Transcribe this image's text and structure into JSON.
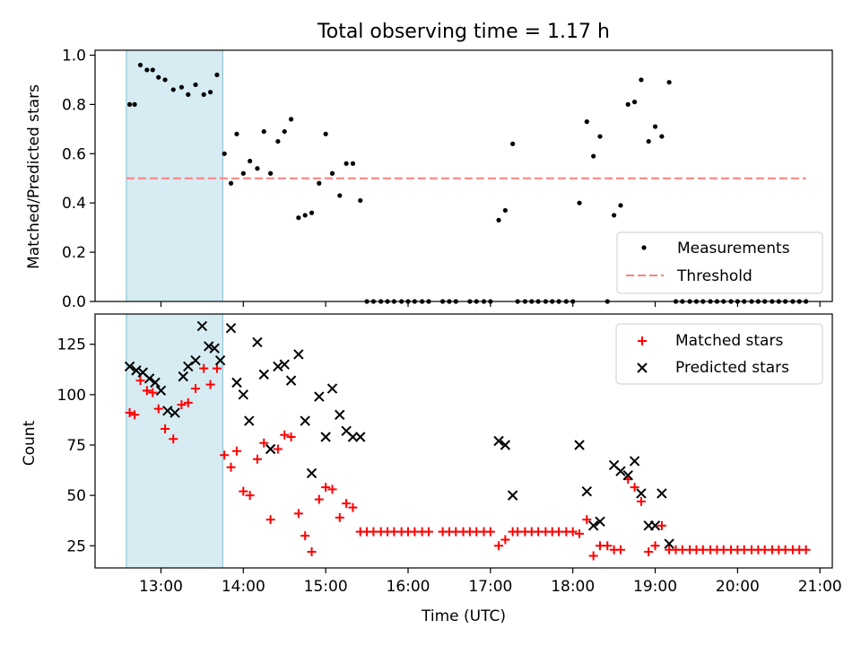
{
  "figure_title": "Total observing time = 1.17 h",
  "chart_data": [
    {
      "type": "scatter",
      "panel": "top",
      "ylabel": "Matched/Predicted stars",
      "xlim": [
        12.2,
        21.15
      ],
      "ylim": [
        0,
        1.02
      ],
      "yticks": [
        "0.0",
        "0.2",
        "0.4",
        "0.6",
        "0.8",
        "1.0"
      ],
      "grid": false,
      "legend_position": "lower-right",
      "shaded_span": {
        "x": [
          12.58,
          13.75
        ],
        "color": "#add8e6"
      },
      "threshold": {
        "name": "Threshold",
        "y": 0.5,
        "x_range": [
          12.58,
          20.83
        ],
        "color": "#ff7f7f"
      },
      "series": [
        {
          "name": "Measurements",
          "color": "#000000",
          "points": [
            [
              12.62,
              0.8
            ],
            [
              12.68,
              0.8
            ],
            [
              12.75,
              0.96
            ],
            [
              12.83,
              0.94
            ],
            [
              12.9,
              0.94
            ],
            [
              12.97,
              0.91
            ],
            [
              13.05,
              0.9
            ],
            [
              13.15,
              0.86
            ],
            [
              13.25,
              0.87
            ],
            [
              13.33,
              0.84
            ],
            [
              13.42,
              0.88
            ],
            [
              13.52,
              0.84
            ],
            [
              13.6,
              0.85
            ],
            [
              13.68,
              0.92
            ],
            [
              13.77,
              0.6
            ],
            [
              13.85,
              0.48
            ],
            [
              13.92,
              0.68
            ],
            [
              14.0,
              0.52
            ],
            [
              14.08,
              0.57
            ],
            [
              14.17,
              0.54
            ],
            [
              14.25,
              0.69
            ],
            [
              14.33,
              0.52
            ],
            [
              14.42,
              0.65
            ],
            [
              14.5,
              0.69
            ],
            [
              14.58,
              0.74
            ],
            [
              14.67,
              0.34
            ],
            [
              14.75,
              0.35
            ],
            [
              14.83,
              0.36
            ],
            [
              14.92,
              0.48
            ],
            [
              15.0,
              0.68
            ],
            [
              15.08,
              0.52
            ],
            [
              15.17,
              0.43
            ],
            [
              15.25,
              0.56
            ],
            [
              15.33,
              0.56
            ],
            [
              15.42,
              0.41
            ],
            [
              15.5,
              0.0
            ],
            [
              15.58,
              0.0
            ],
            [
              15.67,
              0.0
            ],
            [
              15.75,
              0.0
            ],
            [
              15.83,
              0.0
            ],
            [
              15.92,
              0.0
            ],
            [
              16.0,
              0.0
            ],
            [
              16.08,
              0.0
            ],
            [
              16.17,
              0.0
            ],
            [
              16.25,
              0.0
            ],
            [
              16.42,
              0.0
            ],
            [
              16.5,
              0.0
            ],
            [
              16.58,
              0.0
            ],
            [
              16.75,
              0.0
            ],
            [
              16.83,
              0.0
            ],
            [
              16.92,
              0.0
            ],
            [
              17.0,
              0.0
            ],
            [
              17.1,
              0.33
            ],
            [
              17.18,
              0.37
            ],
            [
              17.27,
              0.64
            ],
            [
              17.33,
              0.0
            ],
            [
              17.42,
              0.0
            ],
            [
              17.5,
              0.0
            ],
            [
              17.58,
              0.0
            ],
            [
              17.67,
              0.0
            ],
            [
              17.75,
              0.0
            ],
            [
              17.83,
              0.0
            ],
            [
              17.92,
              0.0
            ],
            [
              18.0,
              0.0
            ],
            [
              18.08,
              0.4
            ],
            [
              18.17,
              0.73
            ],
            [
              18.25,
              0.59
            ],
            [
              18.33,
              0.67
            ],
            [
              18.42,
              0.0
            ],
            [
              18.5,
              0.35
            ],
            [
              18.58,
              0.39
            ],
            [
              18.67,
              0.8
            ],
            [
              18.75,
              0.81
            ],
            [
              18.83,
              0.9
            ],
            [
              18.92,
              0.65
            ],
            [
              19.0,
              0.71
            ],
            [
              19.08,
              0.67
            ],
            [
              19.17,
              0.89
            ],
            [
              19.25,
              0.0
            ],
            [
              19.33,
              0.0
            ],
            [
              19.42,
              0.0
            ],
            [
              19.5,
              0.0
            ],
            [
              19.58,
              0.0
            ],
            [
              19.67,
              0.0
            ],
            [
              19.75,
              0.0
            ],
            [
              19.83,
              0.0
            ],
            [
              19.92,
              0.0
            ],
            [
              20.0,
              0.0
            ],
            [
              20.08,
              0.0
            ],
            [
              20.17,
              0.0
            ],
            [
              20.25,
              0.0
            ],
            [
              20.33,
              0.0
            ],
            [
              20.42,
              0.0
            ],
            [
              20.5,
              0.0
            ],
            [
              20.58,
              0.0
            ],
            [
              20.67,
              0.0
            ],
            [
              20.75,
              0.0
            ],
            [
              20.83,
              0.0
            ]
          ]
        }
      ]
    },
    {
      "type": "scatter",
      "panel": "bottom",
      "xlabel": "Time (UTC)",
      "ylabel": "Count",
      "xlim": [
        12.2,
        21.15
      ],
      "ylim": [
        14,
        140
      ],
      "xticks": [
        {
          "value": 13,
          "label": "13:00"
        },
        {
          "value": 14,
          "label": "14:00"
        },
        {
          "value": 15,
          "label": "15:00"
        },
        {
          "value": 16,
          "label": "16:00"
        },
        {
          "value": 17,
          "label": "17:00"
        },
        {
          "value": 18,
          "label": "18:00"
        },
        {
          "value": 19,
          "label": "19:00"
        },
        {
          "value": 20,
          "label": "20:00"
        },
        {
          "value": 21,
          "label": "21:00"
        }
      ],
      "yticks": [
        25,
        50,
        75,
        100,
        125
      ],
      "grid": false,
      "legend_position": "upper-right",
      "shaded_span": {
        "x": [
          12.58,
          13.75
        ],
        "color": "#add8e6"
      },
      "series": [
        {
          "name": "Matched stars",
          "marker": "plus",
          "color": "#ff0000",
          "points": [
            [
              12.62,
              91
            ],
            [
              12.68,
              90
            ],
            [
              12.75,
              107
            ],
            [
              12.83,
              102
            ],
            [
              12.9,
              101
            ],
            [
              12.97,
              93
            ],
            [
              13.05,
              83
            ],
            [
              13.15,
              78
            ],
            [
              13.25,
              95
            ],
            [
              13.33,
              96
            ],
            [
              13.42,
              103
            ],
            [
              13.52,
              113
            ],
            [
              13.6,
              105
            ],
            [
              13.68,
              113
            ],
            [
              13.77,
              70
            ],
            [
              13.85,
              64
            ],
            [
              13.92,
              72
            ],
            [
              14.0,
              52
            ],
            [
              14.08,
              50
            ],
            [
              14.17,
              68
            ],
            [
              14.25,
              76
            ],
            [
              14.33,
              38
            ],
            [
              14.42,
              73
            ],
            [
              14.5,
              80
            ],
            [
              14.58,
              79
            ],
            [
              14.67,
              41
            ],
            [
              14.75,
              30
            ],
            [
              14.83,
              22
            ],
            [
              14.92,
              48
            ],
            [
              15.0,
              54
            ],
            [
              15.08,
              53
            ],
            [
              15.17,
              39
            ],
            [
              15.25,
              46
            ],
            [
              15.33,
              44
            ],
            [
              15.42,
              32
            ],
            [
              15.5,
              32
            ],
            [
              15.58,
              32
            ],
            [
              15.67,
              32
            ],
            [
              15.75,
              32
            ],
            [
              15.83,
              32
            ],
            [
              15.92,
              32
            ],
            [
              16.0,
              32
            ],
            [
              16.08,
              32
            ],
            [
              16.17,
              32
            ],
            [
              16.25,
              32
            ],
            [
              16.42,
              32
            ],
            [
              16.5,
              32
            ],
            [
              16.58,
              32
            ],
            [
              16.67,
              32
            ],
            [
              16.75,
              32
            ],
            [
              16.83,
              32
            ],
            [
              16.92,
              32
            ],
            [
              17.0,
              32
            ],
            [
              17.1,
              25
            ],
            [
              17.18,
              28
            ],
            [
              17.27,
              32
            ],
            [
              17.33,
              32
            ],
            [
              17.42,
              32
            ],
            [
              17.5,
              32
            ],
            [
              17.58,
              32
            ],
            [
              17.67,
              32
            ],
            [
              17.75,
              32
            ],
            [
              17.83,
              32
            ],
            [
              17.92,
              32
            ],
            [
              18.0,
              32
            ],
            [
              18.08,
              31
            ],
            [
              18.17,
              38
            ],
            [
              18.25,
              20
            ],
            [
              18.33,
              25
            ],
            [
              18.42,
              25
            ],
            [
              18.5,
              23
            ],
            [
              18.58,
              23
            ],
            [
              18.67,
              58
            ],
            [
              18.75,
              54
            ],
            [
              18.83,
              47
            ],
            [
              18.92,
              22
            ],
            [
              19.0,
              25
            ],
            [
              19.08,
              35
            ],
            [
              19.17,
              23
            ],
            [
              19.25,
              23
            ],
            [
              19.33,
              23
            ],
            [
              19.42,
              23
            ],
            [
              19.5,
              23
            ],
            [
              19.58,
              23
            ],
            [
              19.67,
              23
            ],
            [
              19.75,
              23
            ],
            [
              19.83,
              23
            ],
            [
              19.92,
              23
            ],
            [
              20.0,
              23
            ],
            [
              20.08,
              23
            ],
            [
              20.17,
              23
            ],
            [
              20.25,
              23
            ],
            [
              20.33,
              23
            ],
            [
              20.42,
              23
            ],
            [
              20.5,
              23
            ],
            [
              20.58,
              23
            ],
            [
              20.67,
              23
            ],
            [
              20.75,
              23
            ],
            [
              20.83,
              23
            ]
          ]
        },
        {
          "name": "Predicted stars",
          "marker": "x",
          "color": "#000000",
          "points": [
            [
              12.62,
              114
            ],
            [
              12.7,
              112
            ],
            [
              12.78,
              111
            ],
            [
              12.86,
              108
            ],
            [
              12.93,
              106
            ],
            [
              13.0,
              102
            ],
            [
              13.08,
              92
            ],
            [
              13.17,
              91
            ],
            [
              13.27,
              109
            ],
            [
              13.33,
              114
            ],
            [
              13.42,
              117
            ],
            [
              13.5,
              134
            ],
            [
              13.58,
              124
            ],
            [
              13.65,
              123
            ],
            [
              13.72,
              117
            ],
            [
              13.85,
              133
            ],
            [
              13.92,
              106
            ],
            [
              14.0,
              100
            ],
            [
              14.07,
              87
            ],
            [
              14.17,
              126
            ],
            [
              14.25,
              110
            ],
            [
              14.33,
              73
            ],
            [
              14.42,
              114
            ],
            [
              14.5,
              115
            ],
            [
              14.58,
              107
            ],
            [
              14.67,
              120
            ],
            [
              14.75,
              87
            ],
            [
              14.83,
              61
            ],
            [
              14.92,
              99
            ],
            [
              15.0,
              79
            ],
            [
              15.08,
              103
            ],
            [
              15.17,
              90
            ],
            [
              15.25,
              82
            ],
            [
              15.33,
              79
            ],
            [
              15.42,
              79
            ],
            [
              17.1,
              77
            ],
            [
              17.18,
              75
            ],
            [
              17.27,
              50
            ],
            [
              18.08,
              75
            ],
            [
              18.17,
              52
            ],
            [
              18.25,
              35
            ],
            [
              18.33,
              37
            ],
            [
              18.5,
              65
            ],
            [
              18.58,
              62
            ],
            [
              18.67,
              60
            ],
            [
              18.75,
              67
            ],
            [
              18.83,
              51
            ],
            [
              18.92,
              35
            ],
            [
              19.0,
              35
            ],
            [
              19.08,
              51
            ],
            [
              19.17,
              26
            ]
          ]
        }
      ]
    }
  ]
}
